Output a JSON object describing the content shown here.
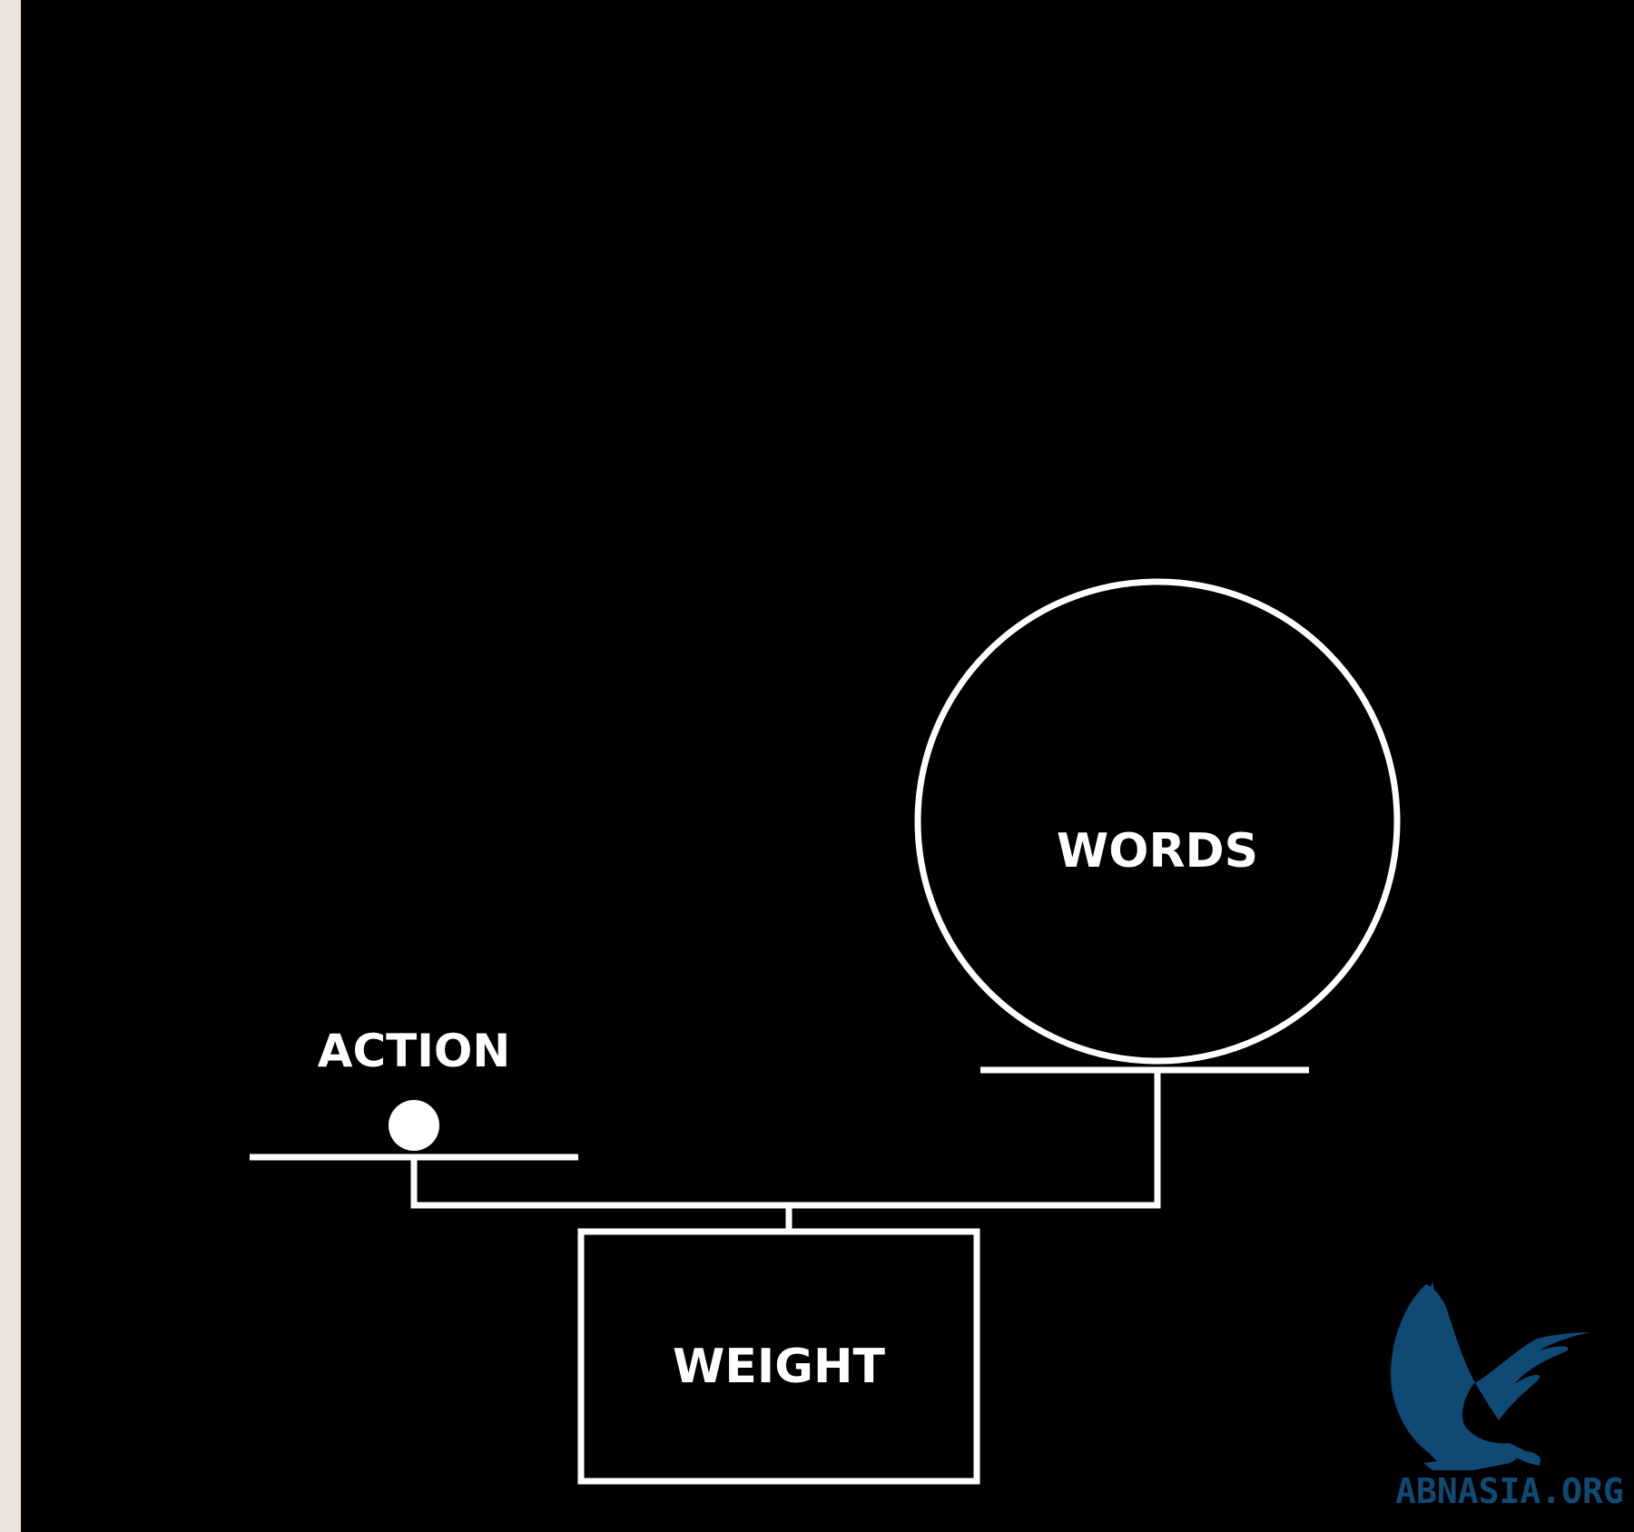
{
  "diagram": {
    "labels": {
      "action": "ACTION",
      "words": "WORDS",
      "weight": "WEIGHT"
    },
    "colors": {
      "background": "#000000",
      "stroke": "#ffffff",
      "side_strip": "#ece4da",
      "watermark": "#0f4a75"
    }
  },
  "watermark": {
    "text": "ABNASIA.ORG",
    "icon": "griffin-icon"
  }
}
